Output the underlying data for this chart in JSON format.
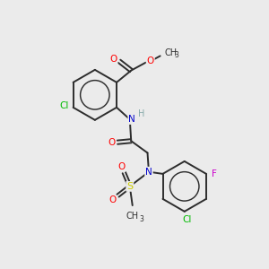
{
  "background_color": "#ebebeb",
  "bond_color": "#2d2d2d",
  "atom_colors": {
    "O": "#ff0000",
    "N": "#0000cc",
    "Cl": "#00bb00",
    "F": "#cc00cc",
    "S": "#cccc00",
    "C": "#2d2d2d",
    "H": "#88aaaa"
  },
  "bond_width": 1.4,
  "fig_width": 3.0,
  "fig_height": 3.0,
  "dpi": 100
}
